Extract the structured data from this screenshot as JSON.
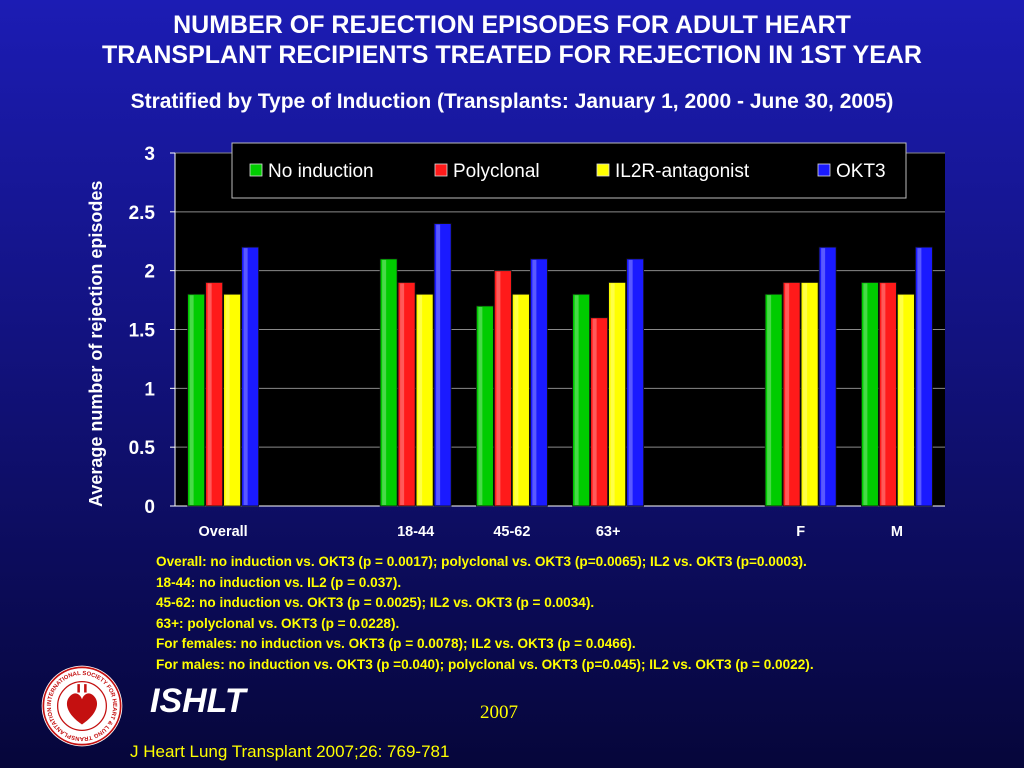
{
  "header": {
    "title_line1": "NUMBER OF REJECTION EPISODES FOR ADULT HEART",
    "title_line2": "TRANSPLANT RECIPIENTS TREATED FOR REJECTION IN 1ST YEAR",
    "subtitle": "Stratified by Type of Induction  (Transplants: January 1, 2000 - June 30, 2005)"
  },
  "colors": {
    "No induction": "#00cc00",
    "Polyclonal": "#ff1a1a",
    "IL2R-antagonist": "#ffff00",
    "OKT3": "#1a1aff",
    "plot_background": "#000000",
    "page_background": "#12127e"
  },
  "chart_data": {
    "type": "bar",
    "ylabel": "Average number of rejection episodes",
    "ylim": [
      0,
      3
    ],
    "yticks": [
      "0",
      "0.5",
      "1",
      "1.5",
      "2",
      "2.5",
      "3"
    ],
    "grid": true,
    "legend_position": "top-right",
    "categories": [
      "Overall",
      "",
      "18-44",
      "45-62",
      "63+",
      "",
      "F",
      "M"
    ],
    "series": [
      {
        "name": "No induction",
        "values": [
          1.8,
          null,
          2.1,
          1.7,
          1.8,
          null,
          1.8,
          1.9
        ]
      },
      {
        "name": "Polyclonal",
        "values": [
          1.9,
          null,
          1.9,
          2.0,
          1.6,
          null,
          1.9,
          1.9
        ]
      },
      {
        "name": "IL2R-antagonist",
        "values": [
          1.8,
          null,
          1.8,
          1.8,
          1.9,
          null,
          1.9,
          1.8
        ]
      },
      {
        "name": "OKT3",
        "values": [
          2.2,
          null,
          2.4,
          2.1,
          2.1,
          null,
          2.2,
          2.2
        ]
      }
    ]
  },
  "notes": [
    "Overall: no induction vs. OKT3 (p = 0.0017); polyclonal vs. OKT3 (p=0.0065); IL2 vs. OKT3 (p=0.0003).",
    "18-44: no induction vs. IL2 (p = 0.037).",
    "45-62: no induction vs. OKT3 (p = 0.0025); IL2 vs. OKT3 (p = 0.0034).",
    "63+: polyclonal vs. OKT3 (p = 0.0228).",
    "For females: no induction vs. OKT3 (p = 0.0078); IL2 vs. OKT3 (p = 0.0466).",
    "For males: no induction vs. OKT3 (p =0.040); polyclonal vs. OKT3 (p=0.045); IL2 vs. OKT3 (p = 0.0022)."
  ],
  "footer": {
    "brand": "ISHLT",
    "year": "2007",
    "citation": "J Heart Lung Transplant 2007;26: 769-781",
    "logo_text": "INTERNATIONAL SOCIETY FOR HEART & LUNG TRANSPLANTATION"
  }
}
